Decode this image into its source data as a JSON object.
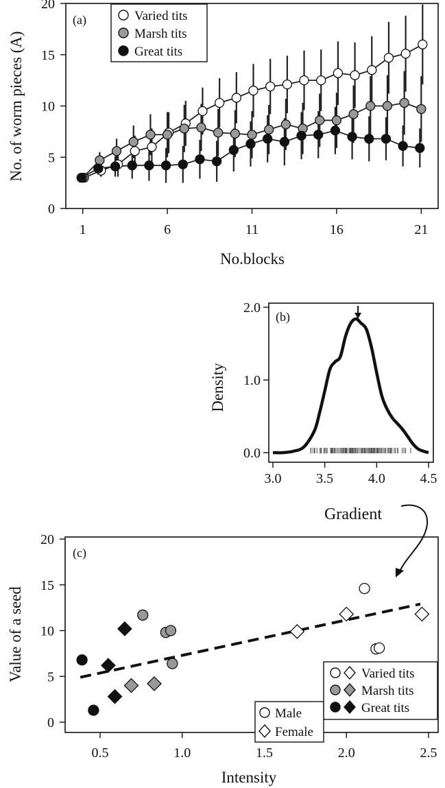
{
  "chart_data": [
    {
      "type": "line",
      "panel_label": "(a)",
      "xlabel": "No.blocks",
      "ylabel": "No. of worm pieces (A)",
      "xlim": [
        0,
        22
      ],
      "ylim": [
        0,
        20
      ],
      "xticks": [
        1,
        6,
        11,
        16,
        21
      ],
      "yticks": [
        0,
        5,
        10,
        15,
        20
      ],
      "grid": false,
      "legend": "top-left",
      "x": [
        1,
        2,
        3,
        4,
        5,
        6,
        7,
        8,
        9,
        10,
        11,
        12,
        13,
        14,
        15,
        16,
        17,
        18,
        19,
        20,
        21
      ],
      "series": [
        {
          "name": "Varied tits",
          "marker": "circle",
          "fill": "#ffffff",
          "values": [
            3.0,
            3.7,
            4.3,
            5.6,
            6.0,
            7.4,
            8.3,
            9.5,
            10.3,
            10.8,
            11.5,
            11.9,
            12.1,
            12.5,
            12.5,
            13.2,
            13.0,
            13.5,
            14.7,
            15.1,
            16.0
          ],
          "err": [
            0.3,
            0.6,
            1.2,
            1.5,
            1.8,
            2.0,
            2.2,
            2.3,
            2.4,
            2.5,
            2.6,
            2.7,
            2.8,
            2.9,
            3.0,
            3.1,
            3.2,
            3.3,
            3.5,
            3.7,
            3.9
          ]
        },
        {
          "name": "Marsh tits",
          "marker": "circle",
          "fill": "#999999",
          "values": [
            3.0,
            4.7,
            5.6,
            6.5,
            7.2,
            7.2,
            7.8,
            7.9,
            7.4,
            7.3,
            7.2,
            7.7,
            8.2,
            7.8,
            8.6,
            8.6,
            9.2,
            10.0,
            10.0,
            10.3,
            9.7
          ],
          "err": [
            0.3,
            0.8,
            1.2,
            1.6,
            2.0,
            2.2,
            2.3,
            2.3,
            2.3,
            2.3,
            2.3,
            2.4,
            2.5,
            2.5,
            2.6,
            2.7,
            2.8,
            2.9,
            3.0,
            3.1,
            3.2
          ]
        },
        {
          "name": "Great tits",
          "marker": "circle",
          "fill": "#111111",
          "values": [
            3.0,
            3.9,
            4.1,
            4.2,
            4.2,
            4.2,
            4.3,
            4.8,
            4.6,
            5.7,
            6.3,
            6.8,
            6.5,
            7.1,
            7.2,
            7.6,
            7.0,
            6.8,
            6.8,
            6.1,
            5.9
          ],
          "err": [
            0.3,
            0.6,
            1.0,
            1.3,
            1.5,
            1.7,
            1.8,
            1.9,
            2.0,
            2.1,
            2.2,
            2.3,
            2.3,
            2.3,
            2.3,
            2.3,
            2.2,
            2.2,
            2.1,
            2.0,
            1.9
          ]
        }
      ]
    },
    {
      "type": "area",
      "panel_label": "(b)",
      "xlabel": "Gradient",
      "ylabel": "Density",
      "xlim": [
        3.0,
        4.5
      ],
      "ylim": [
        0.0,
        2.0
      ],
      "xticks": [
        "3.0",
        "3.5",
        "4.0",
        "4.5"
      ],
      "yticks": [
        "0.0",
        "1.0",
        "2.0"
      ],
      "grid": false,
      "peak_arrow_x": 3.82,
      "x": [
        3.0,
        3.1,
        3.2,
        3.3,
        3.4,
        3.45,
        3.5,
        3.55,
        3.6,
        3.65,
        3.7,
        3.75,
        3.8,
        3.85,
        3.9,
        3.95,
        4.0,
        4.05,
        4.1,
        4.15,
        4.2,
        4.25,
        4.3,
        4.35,
        4.4,
        4.45,
        4.5
      ],
      "values": [
        0.0,
        0.0,
        0.02,
        0.08,
        0.3,
        0.55,
        0.85,
        1.15,
        1.25,
        1.32,
        1.6,
        1.78,
        1.84,
        1.78,
        1.7,
        1.45,
        1.1,
        0.78,
        0.6,
        0.48,
        0.4,
        0.32,
        0.22,
        0.12,
        0.05,
        0.02,
        0.0
      ],
      "rug": {
        "from": 3.25,
        "to": 4.45
      }
    },
    {
      "type": "scatter",
      "panel_label": "(c)",
      "xlabel": "Intensity",
      "ylabel": "Value of a seed",
      "xlim": [
        0.3,
        2.55
      ],
      "ylim": [
        -0.5,
        20
      ],
      "xticks": [
        "0.5",
        "1.0",
        "1.5",
        "2.0",
        "2.5"
      ],
      "yticks": [
        "0",
        "5",
        "10",
        "15",
        "20"
      ],
      "grid": false,
      "trend_line": {
        "x": [
          0.38,
          2.45
        ],
        "y": [
          4.9,
          12.9
        ]
      },
      "series": [
        {
          "name": "Varied tits",
          "fill": "#ffffff",
          "male": [
            [
              2.11,
              14.6
            ],
            [
              2.18,
              8.0
            ],
            [
              2.2,
              8.1
            ]
          ],
          "female": [
            [
              1.7,
              9.9
            ],
            [
              2.0,
              11.8
            ],
            [
              2.46,
              11.8
            ]
          ]
        },
        {
          "name": "Marsh tits",
          "fill": "#999999",
          "male": [
            [
              0.76,
              11.7
            ],
            [
              0.9,
              9.8
            ],
            [
              0.93,
              10.0
            ],
            [
              0.94,
              6.4
            ]
          ],
          "female": [
            [
              0.69,
              4.0
            ],
            [
              0.83,
              4.2
            ]
          ]
        },
        {
          "name": "Great tits",
          "fill": "#111111",
          "male": [
            [
              0.39,
              6.8
            ],
            [
              0.46,
              1.3
            ]
          ],
          "female": [
            [
              0.55,
              6.2
            ],
            [
              0.65,
              10.2
            ],
            [
              0.59,
              2.8
            ]
          ]
        }
      ],
      "legend_sex": {
        "male": "Male",
        "female": "Female"
      },
      "legend": "bottom-right"
    }
  ]
}
